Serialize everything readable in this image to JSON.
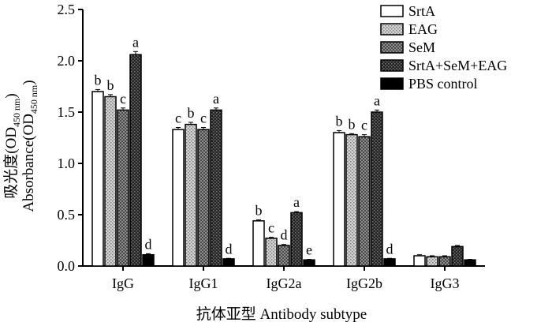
{
  "chart_data": {
    "type": "bar",
    "categories": [
      "IgG",
      "IgG1",
      "IgG2a",
      "IgG2b",
      "IgG3"
    ],
    "series": [
      {
        "name": "SrtA",
        "values": [
          1.7,
          1.33,
          0.44,
          1.3,
          0.1
        ],
        "errors": [
          0.02,
          0.02,
          0.01,
          0.02,
          0.01
        ],
        "labels": [
          "b",
          "c",
          "b",
          "b",
          ""
        ],
        "pattern": "white"
      },
      {
        "name": "EAG",
        "values": [
          1.65,
          1.38,
          0.27,
          1.28,
          0.09
        ],
        "errors": [
          0.02,
          0.02,
          0.01,
          0.01,
          0.01
        ],
        "labels": [
          "b",
          "b",
          "c",
          "b",
          ""
        ],
        "pattern": "lightdots"
      },
      {
        "name": "SeM",
        "values": [
          1.52,
          1.33,
          0.2,
          1.26,
          0.09
        ],
        "errors": [
          0.02,
          0.02,
          0.01,
          0.02,
          0.01
        ],
        "labels": [
          "c",
          "c",
          "d",
          "c",
          ""
        ],
        "pattern": "checker"
      },
      {
        "name": "SrtA+SeM+EAG",
        "values": [
          2.06,
          1.52,
          0.52,
          1.5,
          0.19
        ],
        "errors": [
          0.03,
          0.02,
          0.01,
          0.02,
          0.01
        ],
        "labels": [
          "a",
          "a",
          "a",
          "a",
          ""
        ],
        "pattern": "darkdots"
      },
      {
        "name": "PBS control",
        "values": [
          0.11,
          0.07,
          0.06,
          0.07,
          0.06
        ],
        "errors": [
          0.01,
          0.005,
          0.005,
          0.005,
          0.005
        ],
        "labels": [
          "d",
          "d",
          "e",
          "d",
          ""
        ],
        "pattern": "black"
      }
    ],
    "ylabel_cn": "吸光度(OD",
    "ylabel_en": "Absorbance(OD",
    "ylabel_sub": "450 nm",
    "ylabel_close": ")",
    "xlabel": "抗体亚型  Antibody subtype",
    "ylim": [
      0,
      2.5
    ],
    "yticks": [
      "0.0",
      "0.5",
      "1.0",
      "1.5",
      "2.0",
      "2.5"
    ],
    "grid": false,
    "legend_position": "top-right"
  }
}
